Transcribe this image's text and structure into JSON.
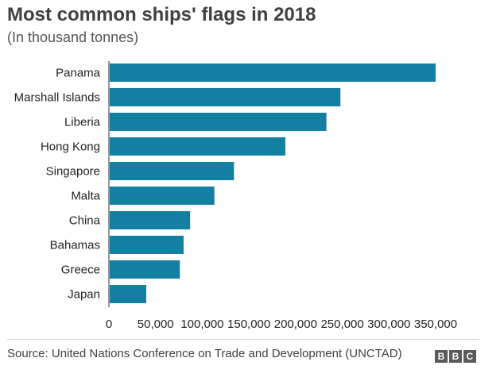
{
  "chart_data": {
    "type": "bar",
    "orientation": "horizontal",
    "title": "Most common ships' flags in 2018",
    "subtitle": "(In thousand tonnes)",
    "categories": [
      "Panama",
      "Marshall Islands",
      "Liberia",
      "Hong Kong",
      "Singapore",
      "Malta",
      "China",
      "Bahamas",
      "Greece",
      "Japan"
    ],
    "values": [
      350000,
      248000,
      233000,
      189000,
      134000,
      113000,
      87000,
      80000,
      76000,
      40000
    ],
    "xticks": [
      "0",
      "50,000",
      "100,000",
      "150,000",
      "200,000",
      "250,000",
      "300,000",
      "350,000"
    ],
    "xlim": [
      0,
      350000
    ],
    "bar_color": "#1380A1",
    "grid": false
  },
  "footer": {
    "source": "Source: United Nations Conference on Trade and Development (UNCTAD)",
    "logo_letters": [
      "B",
      "B",
      "C"
    ]
  }
}
